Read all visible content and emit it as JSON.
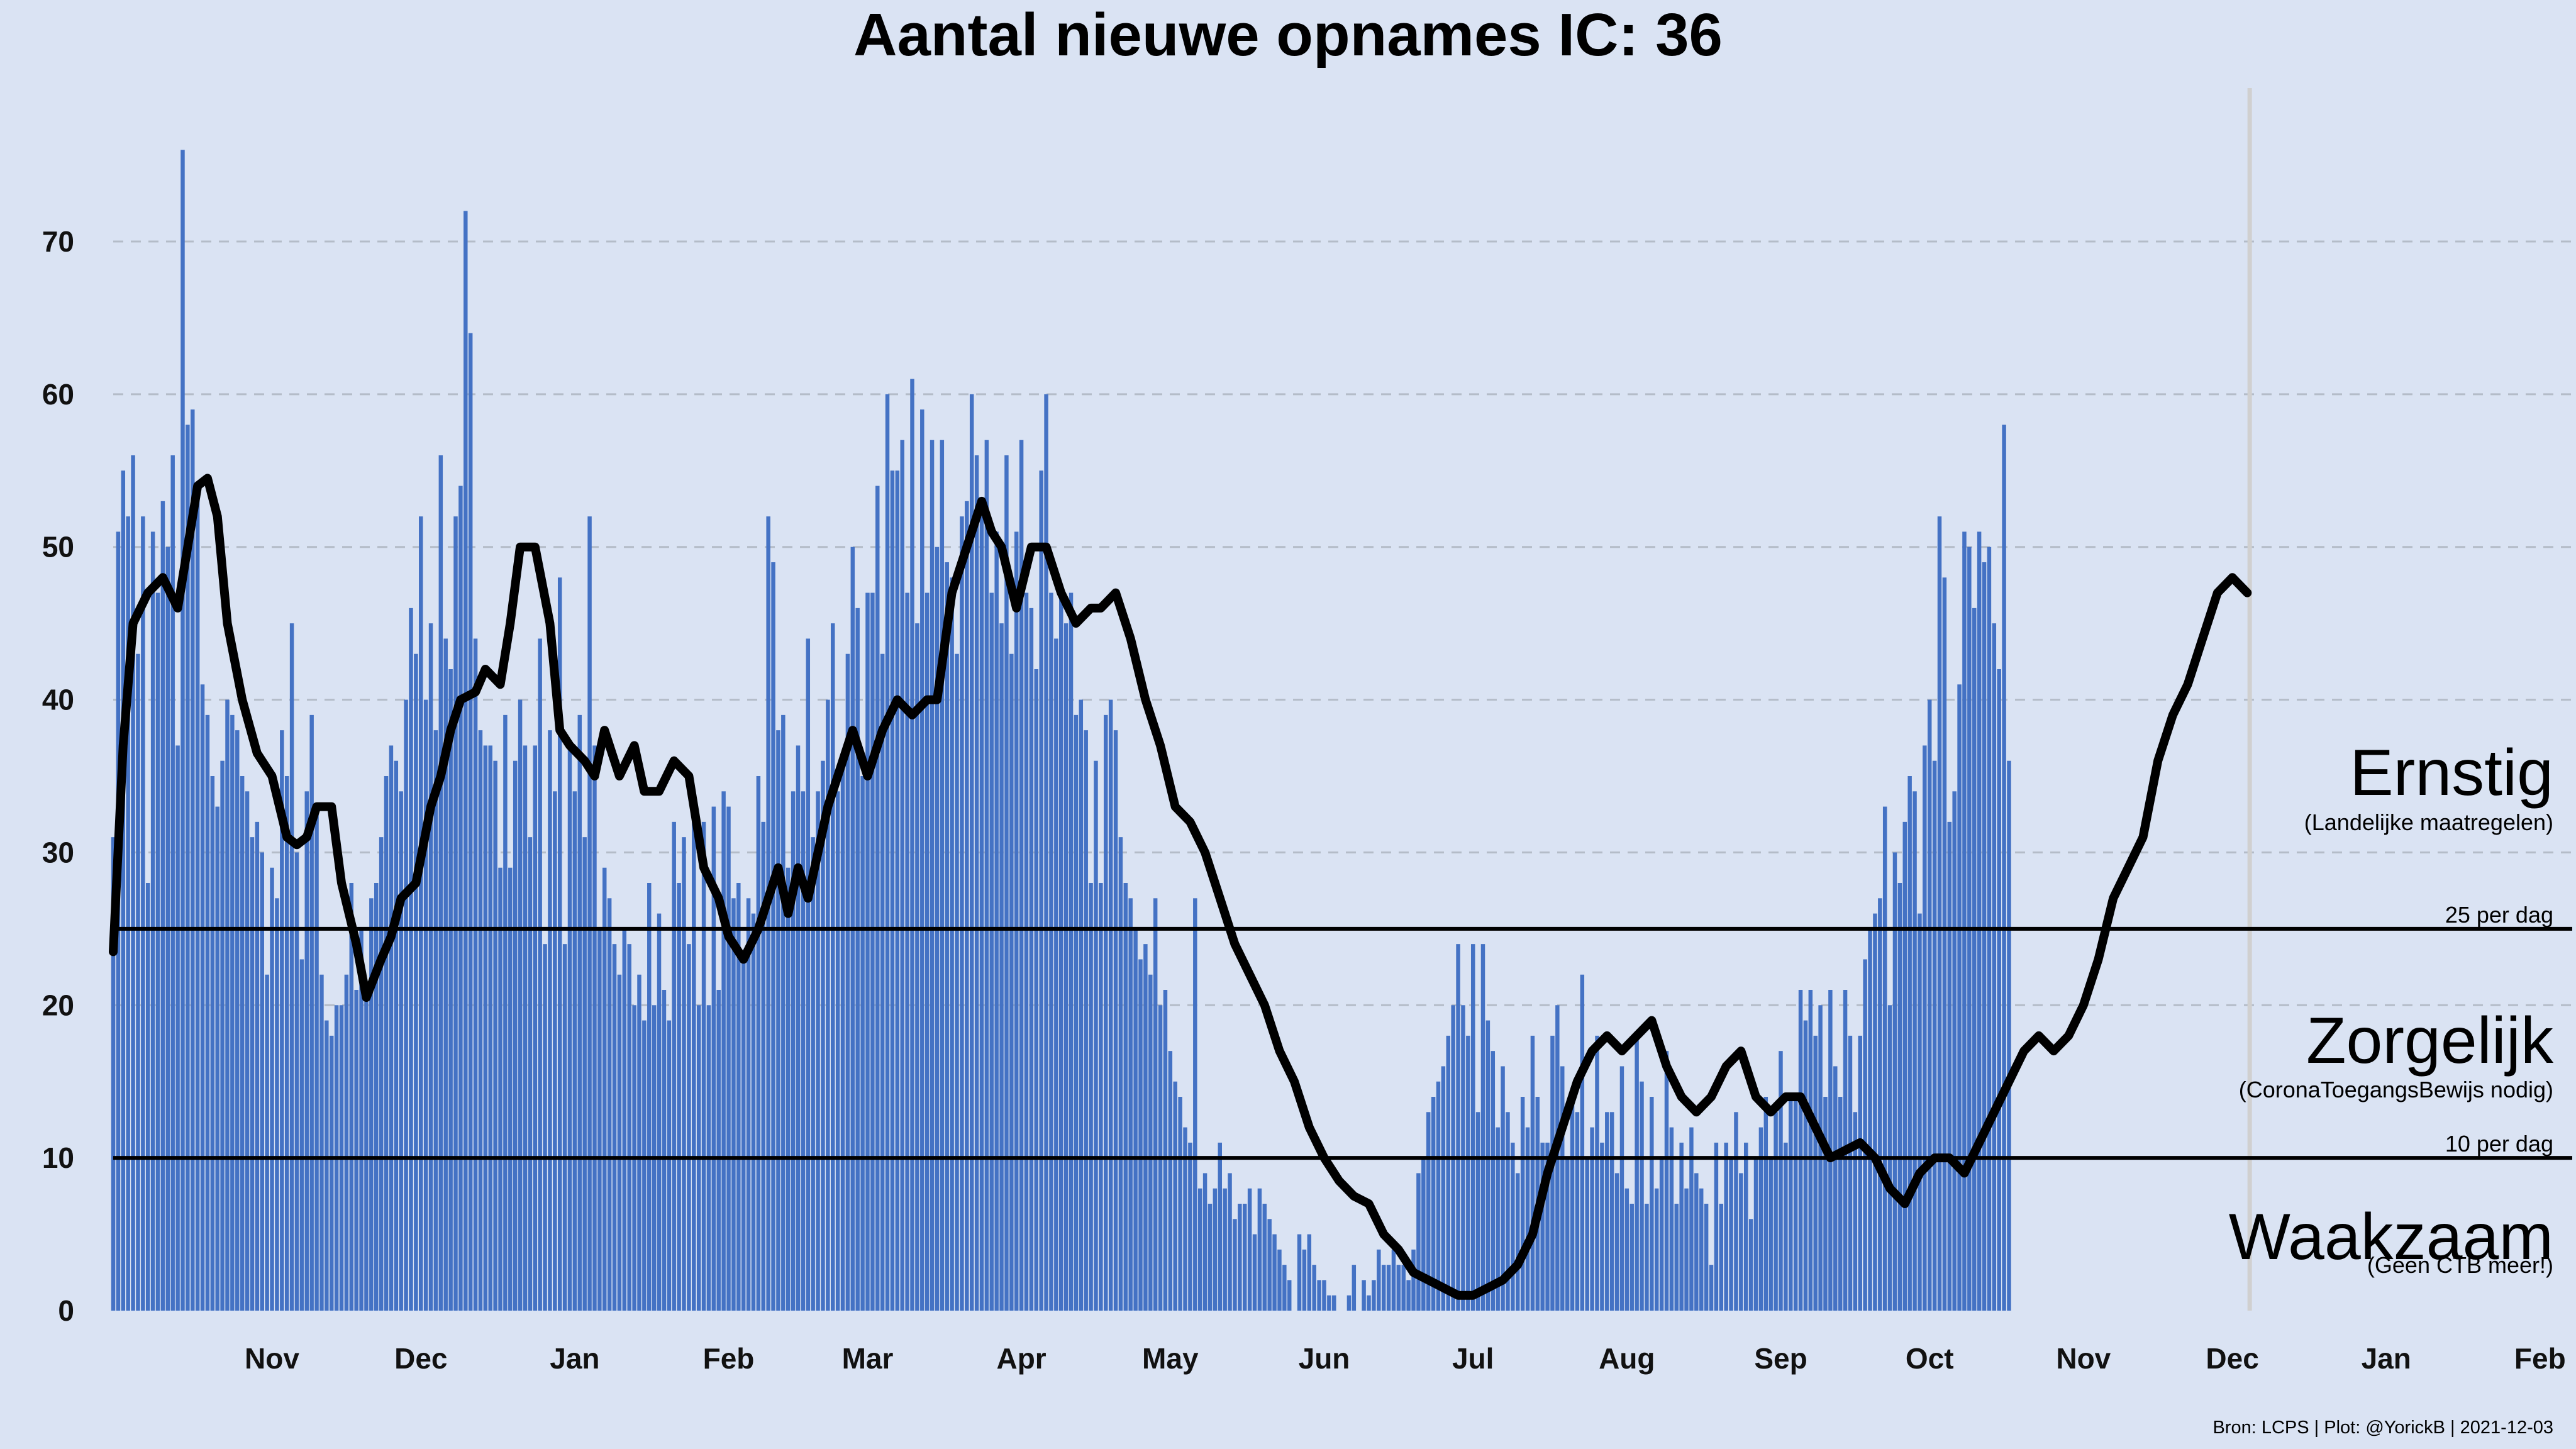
{
  "chart_data": {
    "type": "bar",
    "title": "Aantal nieuwe opnames IC:  36",
    "xlabel": "",
    "ylabel": "",
    "ylim": [
      0,
      80
    ],
    "yticks": [
      0,
      10,
      20,
      30,
      40,
      50,
      60,
      70
    ],
    "grid": "horizontal dashed",
    "x_start": "2020-10-15",
    "x_end": "2022-03-01",
    "month_ticks": [
      {
        "date": "2020-11-01",
        "label": "Nov"
      },
      {
        "date": "2020-12-01",
        "label": "Dec"
      },
      {
        "date": "2021-01-01",
        "label": "Jan"
      },
      {
        "date": "2021-02-01",
        "label": "Feb"
      },
      {
        "date": "2021-03-01",
        "label": "Mar"
      },
      {
        "date": "2021-04-01",
        "label": "Apr"
      },
      {
        "date": "2021-05-01",
        "label": "May"
      },
      {
        "date": "2021-06-01",
        "label": "Jun"
      },
      {
        "date": "2021-07-01",
        "label": "Jul"
      },
      {
        "date": "2021-08-01",
        "label": "Aug"
      },
      {
        "date": "2021-09-01",
        "label": "Sep"
      },
      {
        "date": "2021-10-01",
        "label": "Oct"
      },
      {
        "date": "2021-11-01",
        "label": "Nov"
      },
      {
        "date": "2021-12-01",
        "label": "Dec"
      },
      {
        "date": "2022-01-01",
        "label": "Jan"
      },
      {
        "date": "2022-02-01",
        "label": "Feb"
      }
    ],
    "daily_start": "2020-10-15",
    "daily_values": [
      31,
      51,
      55,
      52,
      56,
      43,
      52,
      28,
      51,
      47,
      53,
      50,
      56,
      37,
      76,
      58,
      59,
      53,
      41,
      39,
      35,
      33,
      36,
      40,
      39,
      38,
      35,
      34,
      31,
      32,
      30,
      22,
      29,
      27,
      38,
      35,
      45,
      30,
      23,
      34,
      39,
      33,
      22,
      19,
      18,
      20,
      20,
      22,
      28,
      21,
      25,
      21,
      27,
      28,
      31,
      35,
      37,
      36,
      34,
      40,
      46,
      43,
      52,
      40,
      45,
      38,
      56,
      44,
      42,
      52,
      54,
      72,
      64,
      44,
      38,
      37,
      37,
      36,
      29,
      39,
      29,
      36,
      40,
      37,
      31,
      37,
      44,
      24,
      38,
      34,
      48,
      24,
      37,
      34,
      39,
      31,
      52,
      37,
      25,
      29,
      27,
      24,
      22,
      25,
      24,
      20,
      22,
      19,
      28,
      20,
      26,
      21,
      19,
      32,
      28,
      31,
      24,
      33,
      20,
      32,
      20,
      33,
      21,
      34,
      33,
      27,
      28,
      23,
      27,
      26,
      35,
      32,
      52,
      49,
      38,
      39,
      29,
      34,
      37,
      34,
      44,
      31,
      34,
      36,
      40,
      45,
      34,
      36,
      43,
      50,
      46,
      35,
      47,
      47,
      54,
      43,
      60,
      55,
      55,
      57,
      47,
      61,
      45,
      59,
      47,
      57,
      50,
      57,
      49,
      48,
      43,
      52,
      53,
      60,
      56,
      52,
      57,
      47,
      51,
      45,
      56,
      43,
      51,
      57,
      47,
      46,
      42,
      55,
      60,
      47,
      44,
      47,
      45,
      47,
      39,
      40,
      38,
      28,
      36,
      28,
      39,
      40,
      38,
      31,
      28,
      27,
      25,
      23,
      24,
      22,
      27,
      20,
      21,
      17,
      15,
      14,
      12,
      11,
      27,
      8,
      9,
      7,
      8,
      11,
      8,
      9,
      6,
      7,
      7,
      8,
      5,
      8,
      7,
      6,
      5,
      4,
      3,
      2,
      0,
      5,
      4,
      5,
      3,
      2,
      2,
      1,
      1,
      0,
      0,
      1,
      3,
      0,
      2,
      1,
      2,
      4,
      3,
      3,
      4,
      3,
      3,
      2,
      4,
      9,
      10,
      13,
      14,
      15,
      16,
      18,
      20,
      24,
      20,
      18,
      24,
      13,
      24,
      19,
      17,
      12,
      16,
      13,
      11,
      9,
      14,
      12,
      18,
      14,
      11,
      11,
      18,
      20,
      16,
      10,
      14,
      13,
      22,
      10,
      12,
      18,
      11,
      13,
      13,
      9,
      16,
      8,
      7,
      18,
      15,
      7,
      14,
      8,
      10,
      17,
      12,
      7,
      11,
      8,
      12,
      9,
      8,
      7,
      3,
      11,
      7,
      11,
      10,
      13,
      9,
      11,
      6,
      10,
      12,
      14,
      10,
      13,
      17,
      11,
      14,
      14,
      21,
      19,
      21,
      18,
      20,
      14,
      21,
      16,
      14,
      21,
      18,
      13,
      18,
      23,
      25,
      26,
      27,
      33,
      20,
      30,
      28,
      32,
      35,
      34,
      26,
      37,
      40,
      36,
      52,
      48,
      32,
      34,
      41,
      51,
      50,
      46,
      51,
      49,
      50,
      45,
      42,
      58,
      36
    ],
    "rolling_avg": [
      [
        "2020-10-15",
        23.5
      ],
      [
        "2020-10-17",
        37
      ],
      [
        "2020-10-19",
        45
      ],
      [
        "2020-10-22",
        47
      ],
      [
        "2020-10-25",
        48
      ],
      [
        "2020-10-28",
        46
      ],
      [
        "2020-10-30",
        50
      ],
      [
        "2020-11-01",
        54
      ],
      [
        "2020-11-03",
        54.5
      ],
      [
        "2020-11-05",
        52
      ],
      [
        "2020-11-07",
        45
      ],
      [
        "2020-11-10",
        40
      ],
      [
        "2020-11-13",
        36.5
      ],
      [
        "2020-11-16",
        35
      ],
      [
        "2020-11-19",
        31
      ],
      [
        "2020-11-21",
        30.5
      ],
      [
        "2020-11-23",
        31
      ],
      [
        "2020-11-25",
        33
      ],
      [
        "2020-11-28",
        33
      ],
      [
        "2020-11-30",
        28
      ],
      [
        "2020-12-03",
        24
      ],
      [
        "2020-12-05",
        20.5
      ],
      [
        "2020-12-08",
        23
      ],
      [
        "2020-12-10",
        24.5
      ],
      [
        "2020-12-12",
        27
      ],
      [
        "2020-12-15",
        28
      ],
      [
        "2020-12-18",
        33
      ],
      [
        "2020-12-20",
        35
      ],
      [
        "2020-12-22",
        38
      ],
      [
        "2020-12-24",
        40
      ],
      [
        "2020-12-27",
        40.5
      ],
      [
        "2020-12-29",
        42
      ],
      [
        "2021-01-01",
        41
      ],
      [
        "2021-01-03",
        45
      ],
      [
        "2021-01-05",
        50
      ],
      [
        "2021-01-08",
        50
      ],
      [
        "2021-01-11",
        45
      ],
      [
        "2021-01-13",
        38
      ],
      [
        "2021-01-15",
        37
      ],
      [
        "2021-01-18",
        36
      ],
      [
        "2021-01-20",
        35
      ],
      [
        "2021-01-22",
        38
      ],
      [
        "2021-01-25",
        35
      ],
      [
        "2021-01-28",
        37
      ],
      [
        "2021-01-30",
        34
      ],
      [
        "2021-02-02",
        34
      ],
      [
        "2021-02-05",
        36
      ],
      [
        "2021-02-08",
        35
      ],
      [
        "2021-02-11",
        29
      ],
      [
        "2021-02-14",
        27
      ],
      [
        "2021-02-16",
        24.5
      ],
      [
        "2021-02-19",
        23
      ],
      [
        "2021-02-22",
        25
      ],
      [
        "2021-02-24",
        27
      ],
      [
        "2021-02-26",
        29
      ],
      [
        "2021-02-28",
        26
      ],
      [
        "2021-03-02",
        29
      ],
      [
        "2021-03-04",
        27
      ],
      [
        "2021-03-06",
        30
      ],
      [
        "2021-03-08",
        33
      ],
      [
        "2021-03-10",
        35
      ],
      [
        "2021-03-13",
        38
      ],
      [
        "2021-03-16",
        35
      ],
      [
        "2021-03-19",
        38
      ],
      [
        "2021-03-22",
        40
      ],
      [
        "2021-03-25",
        39
      ],
      [
        "2021-03-28",
        40
      ],
      [
        "2021-03-30",
        40
      ],
      [
        "2021-04-02",
        47
      ],
      [
        "2021-04-05",
        50
      ],
      [
        "2021-04-08",
        53
      ],
      [
        "2021-04-10",
        51
      ],
      [
        "2021-04-12",
        50
      ],
      [
        "2021-04-15",
        46
      ],
      [
        "2021-04-18",
        50
      ],
      [
        "2021-04-21",
        50
      ],
      [
        "2021-04-24",
        47
      ],
      [
        "2021-04-27",
        45
      ],
      [
        "2021-04-30",
        46
      ],
      [
        "2021-05-02",
        46
      ],
      [
        "2021-05-05",
        47
      ],
      [
        "2021-05-08",
        44
      ],
      [
        "2021-05-11",
        40
      ],
      [
        "2021-05-14",
        37
      ],
      [
        "2021-05-17",
        33
      ],
      [
        "2021-05-20",
        32
      ],
      [
        "2021-05-23",
        30
      ],
      [
        "2021-05-26",
        27
      ],
      [
        "2021-05-29",
        24
      ],
      [
        "2021-06-01",
        22
      ],
      [
        "2021-06-04",
        20
      ],
      [
        "2021-06-07",
        17
      ],
      [
        "2021-06-10",
        15
      ],
      [
        "2021-06-13",
        12
      ],
      [
        "2021-06-16",
        10
      ],
      [
        "2021-06-19",
        8.5
      ],
      [
        "2021-06-22",
        7.5
      ],
      [
        "2021-06-25",
        7
      ],
      [
        "2021-06-28",
        5
      ],
      [
        "2021-07-01",
        4
      ],
      [
        "2021-07-04",
        2.5
      ],
      [
        "2021-07-07",
        2
      ],
      [
        "2021-07-10",
        1.5
      ],
      [
        "2021-07-13",
        1
      ],
      [
        "2021-07-16",
        1
      ],
      [
        "2021-07-19",
        1.5
      ],
      [
        "2021-07-22",
        2
      ],
      [
        "2021-07-25",
        3
      ],
      [
        "2021-07-28",
        5
      ],
      [
        "2021-07-31",
        9
      ],
      [
        "2021-08-03",
        12
      ],
      [
        "2021-08-06",
        15
      ],
      [
        "2021-08-09",
        17
      ],
      [
        "2021-08-12",
        18
      ],
      [
        "2021-08-15",
        17
      ],
      [
        "2021-08-18",
        18
      ],
      [
        "2021-08-21",
        19
      ],
      [
        "2021-08-24",
        16
      ],
      [
        "2021-08-27",
        14
      ],
      [
        "2021-08-30",
        13
      ],
      [
        "2021-09-02",
        14
      ],
      [
        "2021-09-05",
        16
      ],
      [
        "2021-09-08",
        17
      ],
      [
        "2021-09-11",
        14
      ],
      [
        "2021-09-14",
        13
      ],
      [
        "2021-09-17",
        14
      ],
      [
        "2021-09-20",
        14
      ],
      [
        "2021-09-23",
        12
      ],
      [
        "2021-09-26",
        10
      ],
      [
        "2021-09-29",
        10.5
      ],
      [
        "2021-10-02",
        11
      ],
      [
        "2021-10-05",
        10
      ],
      [
        "2021-10-08",
        8
      ],
      [
        "2021-10-11",
        7
      ],
      [
        "2021-10-14",
        9
      ],
      [
        "2021-10-17",
        10
      ],
      [
        "2021-10-20",
        10
      ],
      [
        "2021-10-23",
        9
      ],
      [
        "2021-10-26",
        11
      ],
      [
        "2021-10-29",
        13
      ],
      [
        "2021-11-01",
        15
      ],
      [
        "2021-11-04",
        17
      ],
      [
        "2021-11-07",
        18
      ],
      [
        "2021-11-10",
        17
      ],
      [
        "2021-11-13",
        18
      ],
      [
        "2021-11-16",
        20
      ],
      [
        "2021-11-19",
        23
      ],
      [
        "2021-11-22",
        27
      ],
      [
        "2021-11-25",
        29
      ],
      [
        "2021-11-28",
        31
      ],
      [
        "2021-12-01",
        36
      ],
      [
        "2021-12-04",
        39
      ],
      [
        "2021-12-07",
        41
      ],
      [
        "2021-12-10",
        44
      ],
      [
        "2021-12-13",
        47
      ],
      [
        "2021-12-16",
        48
      ],
      [
        "2021-12-19",
        47
      ]
    ],
    "marker_line_date": "2021-12-20",
    "thresholds": [
      {
        "value": 25,
        "label": "25 per dag"
      },
      {
        "value": 10,
        "label": "10 per dag"
      }
    ],
    "zones": [
      {
        "name": "Ernstig",
        "note": "(Landelijke maatregelen)"
      },
      {
        "name": "Zorgelijk",
        "note": "(CoronaToegangsBewijs nodig)"
      },
      {
        "name": "Waakzaam",
        "note": "(Geen CTB meer!)"
      }
    ],
    "source": "Bron: LCPS | Plot: @YorickB |  2021-12-03",
    "colors": {
      "background": "#dae3f3",
      "bars": "#4472c4",
      "line": "#000000",
      "grid": "#b4bcc8",
      "marker_line": "#d0d0d0"
    }
  }
}
